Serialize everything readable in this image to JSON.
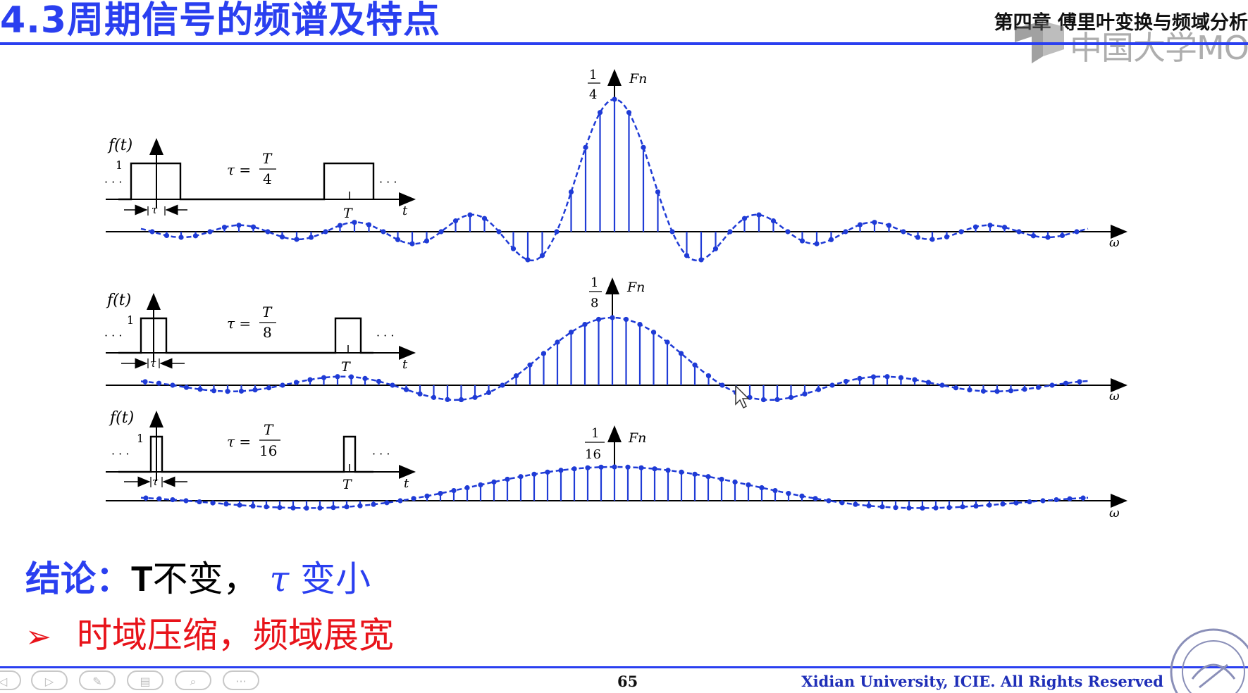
{
  "header": {
    "title": "4.3周期信号的频谱及特点",
    "chapter": "第四章 傅里叶变换与频域分析",
    "watermark": "中国大学MO"
  },
  "figure": {
    "panels": [
      {
        "ft_label": "f(t)",
        "amp": "1",
        "tau_eq": "τ =",
        "tau_num": "T",
        "tau_den": "4",
        "t_tick": "T",
        "t_axis": "t",
        "tau_mark": "τ",
        "fn_num": "1",
        "fn_den": "4",
        "fn_label": "Fn",
        "w_axis": "ω",
        "dots": "· · ·"
      },
      {
        "ft_label": "f(t)",
        "amp": "1",
        "tau_eq": "τ =",
        "tau_num": "T",
        "tau_den": "8",
        "t_tick": "T",
        "t_axis": "t",
        "tau_mark": "τ",
        "fn_num": "1",
        "fn_den": "8",
        "fn_label": "Fn",
        "w_axis": "ω",
        "dots": "· · ·"
      },
      {
        "ft_label": "f(t)",
        "amp": "1",
        "tau_eq": "τ =",
        "tau_num": "T",
        "tau_den": "16",
        "t_tick": "T",
        "t_axis": "t",
        "tau_mark": "τ",
        "fn_num": "1",
        "fn_den": "16",
        "fn_label": "Fn",
        "w_axis": "ω",
        "dots": "· · ·"
      }
    ],
    "colors": {
      "stem": "#1f3bd6",
      "axis": "#000000"
    }
  },
  "conclusion": {
    "label": "结论：",
    "t_letter": "T",
    "unchanged": "不变，",
    "tau": "τ",
    "smaller": "变小",
    "bullet_arrow": "➢",
    "bullet_text": "时域压缩，频域展宽"
  },
  "footer": {
    "page_number": "65",
    "rights": "Xidian University, ICIE. All Rights Reserved",
    "nav_icons": [
      "prev-icon",
      "play-icon",
      "pen-icon",
      "slides-icon",
      "zoom-icon",
      "more-icon"
    ]
  },
  "colors": {
    "title_blue": "#2a3ff0",
    "bullet_red": "#e8131a"
  }
}
